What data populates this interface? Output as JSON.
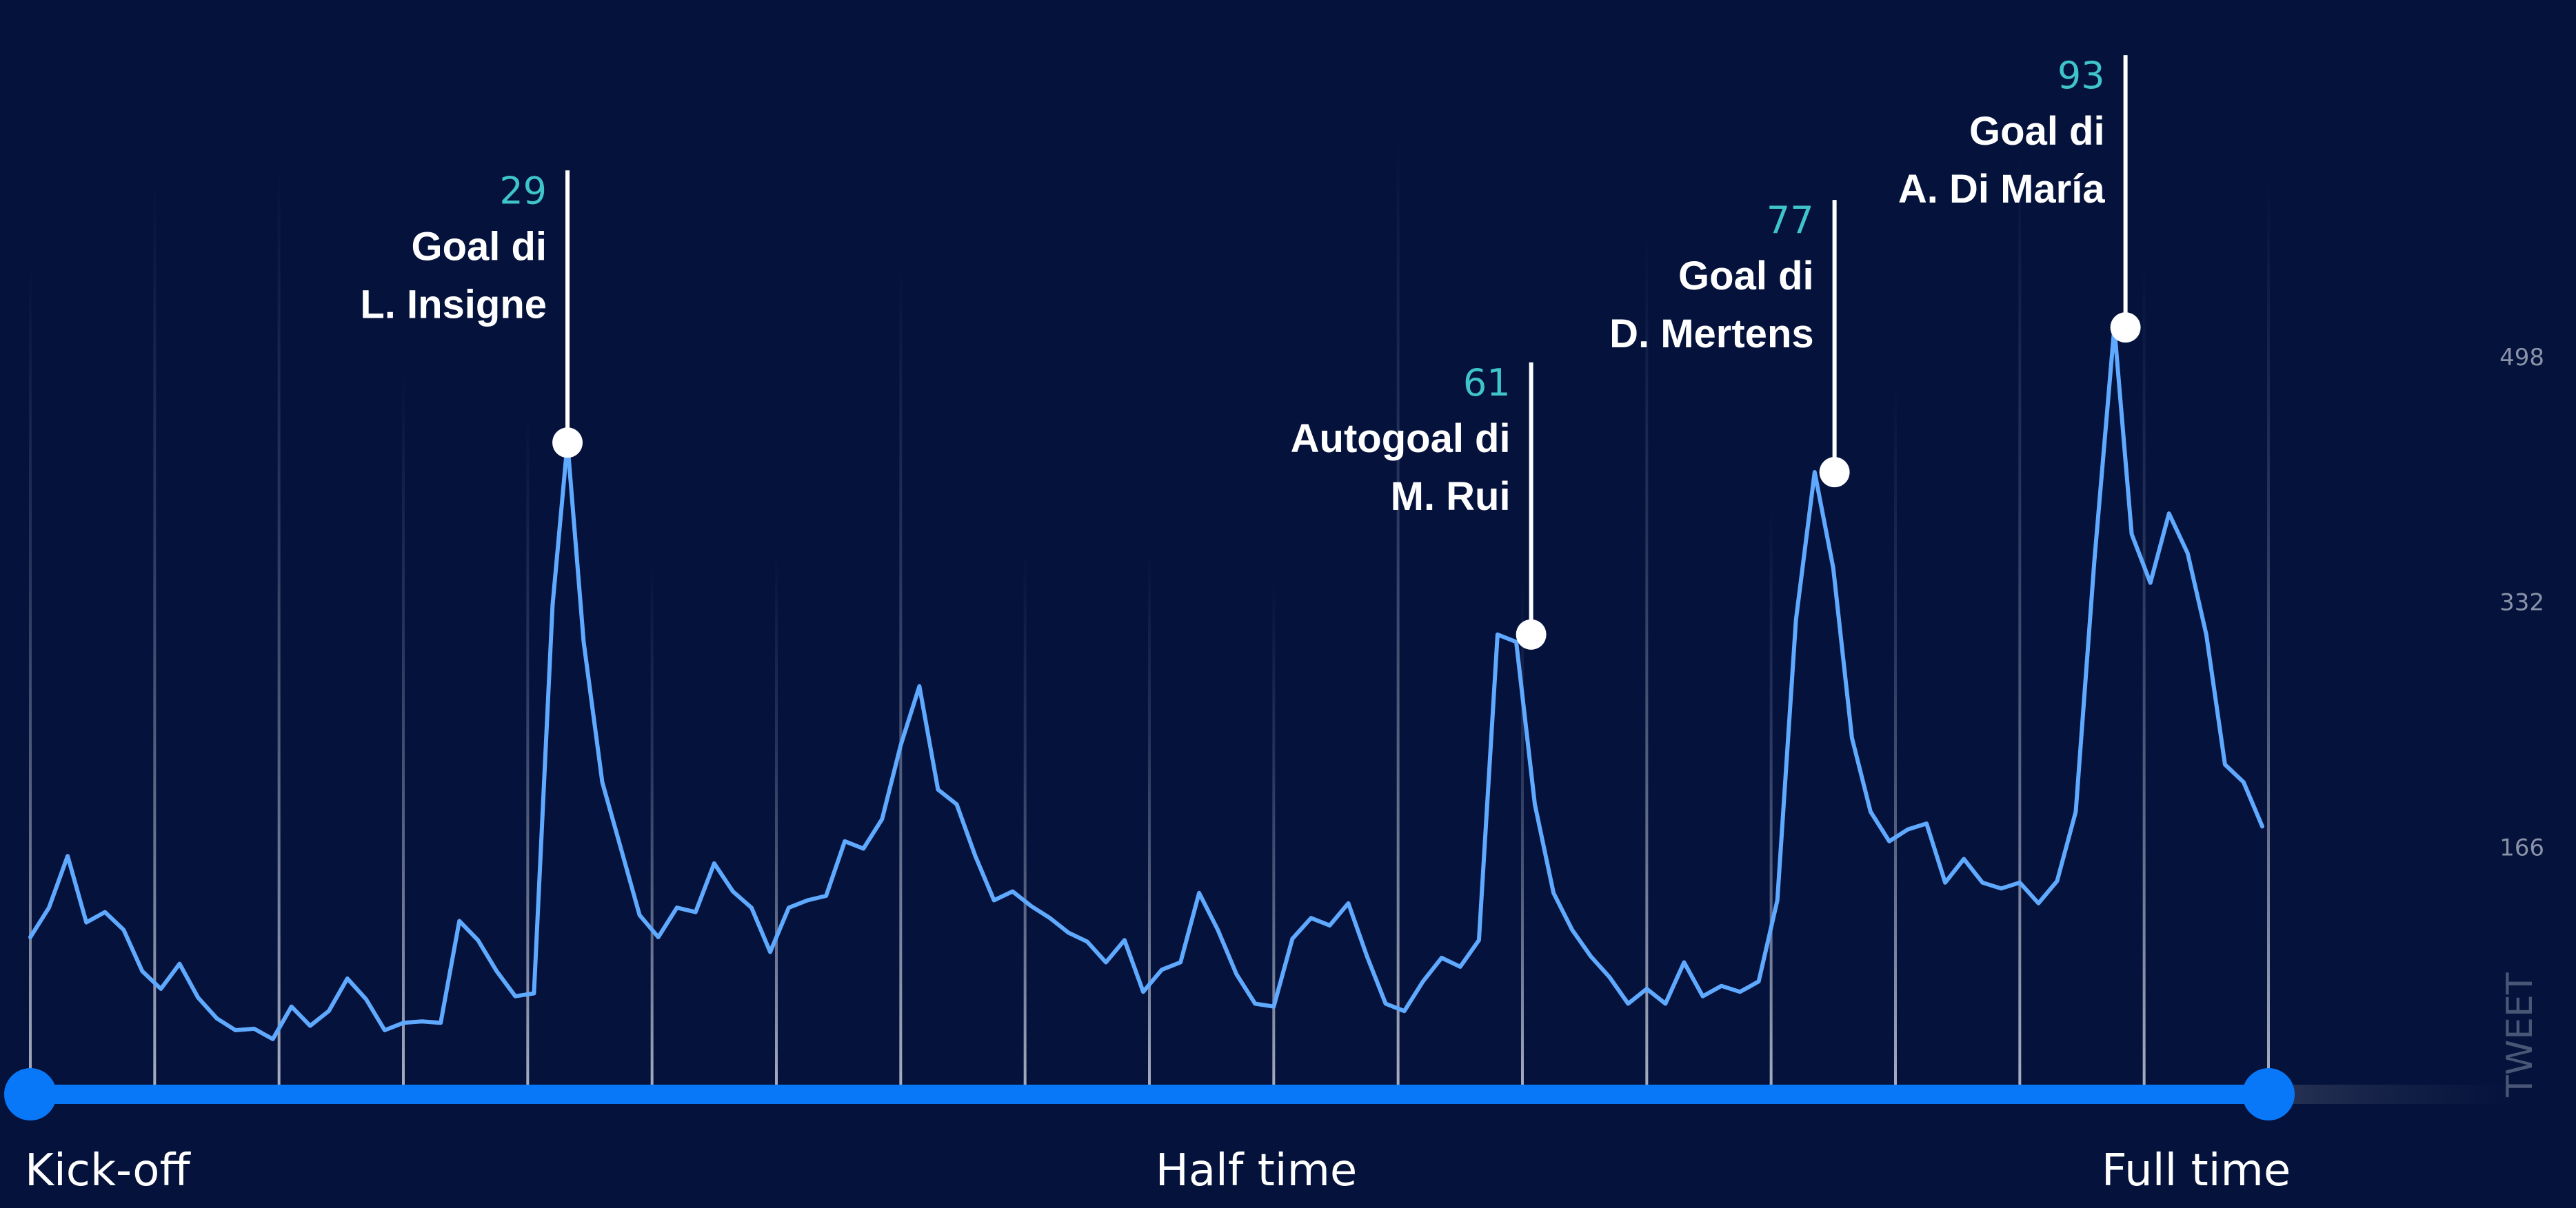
{
  "chart_data": {
    "type": "line",
    "ylabel": "TWEET",
    "ylim": [
      0,
      560
    ],
    "yticks": [
      166,
      332,
      498
    ],
    "x_range": [
      0,
      90
    ],
    "phase_labels": [
      {
        "label": "Kick-off",
        "minute": 0
      },
      {
        "label": "Half time",
        "minute": 45
      },
      {
        "label": "Full time",
        "minute": 90
      }
    ],
    "grid_minutes": [
      0,
      5,
      10,
      15,
      20,
      25,
      30,
      35,
      40,
      45,
      50,
      55,
      60,
      65,
      70,
      75,
      80,
      85,
      90
    ],
    "series": [
      {
        "values": [
          [
            0,
            105
          ],
          [
            0.75,
            125
          ],
          [
            1.5,
            160
          ],
          [
            2.25,
            115
          ],
          [
            3,
            122
          ],
          [
            3.75,
            110
          ],
          [
            4.5,
            82
          ],
          [
            5.25,
            70
          ],
          [
            6,
            87
          ],
          [
            6.75,
            64
          ],
          [
            7.5,
            50
          ],
          [
            8.25,
            42
          ],
          [
            9,
            43
          ],
          [
            9.75,
            36
          ],
          [
            10.5,
            58
          ],
          [
            11.25,
            45
          ],
          [
            12,
            55
          ],
          [
            12.75,
            77
          ],
          [
            13.5,
            63
          ],
          [
            14.25,
            42
          ],
          [
            15,
            47
          ],
          [
            15.75,
            48
          ],
          [
            16.5,
            47
          ],
          [
            17.25,
            116
          ],
          [
            18,
            103
          ],
          [
            18.75,
            82
          ],
          [
            19.5,
            65
          ],
          [
            20.25,
            67
          ],
          [
            21,
            330
          ],
          [
            21.6,
            440
          ],
          [
            22.25,
            305
          ],
          [
            23,
            210
          ],
          [
            23.75,
            165
          ],
          [
            24.5,
            120
          ],
          [
            25.25,
            105
          ],
          [
            26,
            125
          ],
          [
            26.75,
            122
          ],
          [
            27.5,
            155
          ],
          [
            28.25,
            136
          ],
          [
            29,
            125
          ],
          [
            29.75,
            95
          ],
          [
            30.5,
            125
          ],
          [
            31.25,
            130
          ],
          [
            32,
            133
          ],
          [
            32.75,
            170
          ],
          [
            33.5,
            165
          ],
          [
            34.25,
            185
          ],
          [
            35,
            235
          ],
          [
            35.75,
            275
          ],
          [
            36.5,
            205
          ],
          [
            37.25,
            195
          ],
          [
            38,
            160
          ],
          [
            38.75,
            130
          ],
          [
            39.5,
            136
          ],
          [
            40.25,
            126
          ],
          [
            41,
            118
          ],
          [
            41.75,
            108
          ],
          [
            42.5,
            102
          ],
          [
            43.25,
            88
          ],
          [
            44,
            103
          ],
          [
            44.75,
            68
          ],
          [
            45.5,
            83
          ],
          [
            46.25,
            88
          ],
          [
            47,
            135
          ],
          [
            47.75,
            110
          ],
          [
            48.5,
            80
          ],
          [
            49.25,
            60
          ],
          [
            50,
            58
          ],
          [
            50.75,
            104
          ],
          [
            51.5,
            118
          ],
          [
            52.25,
            113
          ],
          [
            53,
            128
          ],
          [
            53.75,
            92
          ],
          [
            54.5,
            60
          ],
          [
            55.25,
            55
          ],
          [
            56,
            75
          ],
          [
            56.75,
            91
          ],
          [
            57.5,
            85
          ],
          [
            58.25,
            103
          ],
          [
            59,
            310
          ],
          [
            59.75,
            305
          ],
          [
            60.5,
            195
          ],
          [
            61.25,
            135
          ],
          [
            62,
            110
          ],
          [
            62.75,
            92
          ],
          [
            63.5,
            78
          ],
          [
            64.25,
            60
          ],
          [
            65,
            70
          ],
          [
            65.75,
            60
          ],
          [
            66.5,
            88
          ],
          [
            67.25,
            65
          ],
          [
            68,
            72
          ],
          [
            68.75,
            68
          ],
          [
            69.5,
            75
          ],
          [
            70.25,
            130
          ],
          [
            71,
            320
          ],
          [
            71.75,
            420
          ],
          [
            72.5,
            355
          ],
          [
            73.25,
            240
          ],
          [
            74,
            190
          ],
          [
            74.75,
            170
          ],
          [
            75.5,
            178
          ],
          [
            76.25,
            182
          ],
          [
            77,
            142
          ],
          [
            77.75,
            158
          ],
          [
            78.5,
            142
          ],
          [
            79.25,
            138
          ],
          [
            80,
            142
          ],
          [
            80.75,
            128
          ],
          [
            81.5,
            143
          ],
          [
            82.25,
            190
          ],
          [
            83,
            360
          ],
          [
            83.8,
            518
          ],
          [
            84.5,
            378
          ],
          [
            85.25,
            345
          ],
          [
            86,
            392
          ],
          [
            86.75,
            365
          ],
          [
            87.5,
            310
          ],
          [
            88.25,
            222
          ],
          [
            89,
            210
          ],
          [
            89.75,
            180
          ]
        ]
      }
    ],
    "annotations": [
      {
        "minute_label": "29",
        "line1": "Goal di",
        "line2": "L. Insigne",
        "x": 21.6,
        "y": 440
      },
      {
        "minute_label": "61",
        "line1": "Autogoal di",
        "line2": "M. Rui",
        "x": 60.35,
        "y": 310
      },
      {
        "minute_label": "77",
        "line1": "Goal di",
        "line2": "D. Mertens",
        "x": 72.55,
        "y": 420
      },
      {
        "minute_label": "93",
        "line1": "Goal di",
        "line2": "A. Di María",
        "x": 84.25,
        "y": 518
      }
    ]
  },
  "colors": {
    "background": "#04123c",
    "line": "#5fa9ff",
    "timeline": "#0878f8",
    "minute_number": "#3fc4c9",
    "event_text": "#ffffff",
    "muted_text": "#8a92a8",
    "phase_text": "#ffffff"
  }
}
